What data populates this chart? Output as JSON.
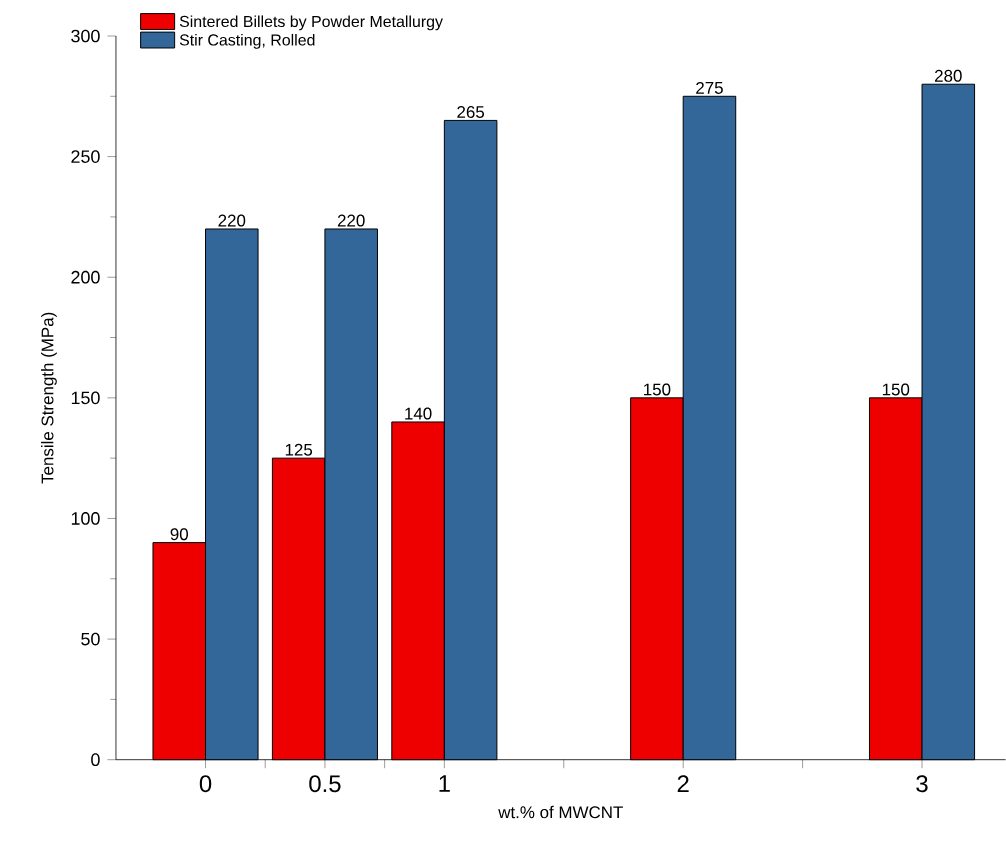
{
  "chart_data": {
    "type": "bar",
    "xlabel": "wt.% of MWCNT",
    "ylabel": "Tensile Strength (MPa)",
    "x": [
      0,
      0.5,
      1,
      2,
      3
    ],
    "series": [
      {
        "name": "Sintered Billets by Powder Metallurgy",
        "color": "#ee0000",
        "values": [
          90,
          125,
          140,
          150,
          150
        ]
      },
      {
        "name": "Stir Casting, Rolled",
        "color": "#336699",
        "values": [
          220,
          220,
          265,
          275,
          280
        ]
      }
    ],
    "xlim": [
      -0.375,
      3.35
    ],
    "xticks": [
      0,
      {
        "value": 0.25,
        "label": null
      },
      0.5,
      {
        "value": 0.75,
        "label": null
      },
      1,
      {
        "value": 1.5,
        "label": null
      },
      2,
      {
        "value": 2.5,
        "label": null
      },
      3
    ],
    "ylim": [
      0,
      300
    ],
    "yticks": [
      0,
      50,
      100,
      150,
      200,
      250,
      300
    ],
    "data_labels": true,
    "grid": false,
    "legend": "top left"
  }
}
